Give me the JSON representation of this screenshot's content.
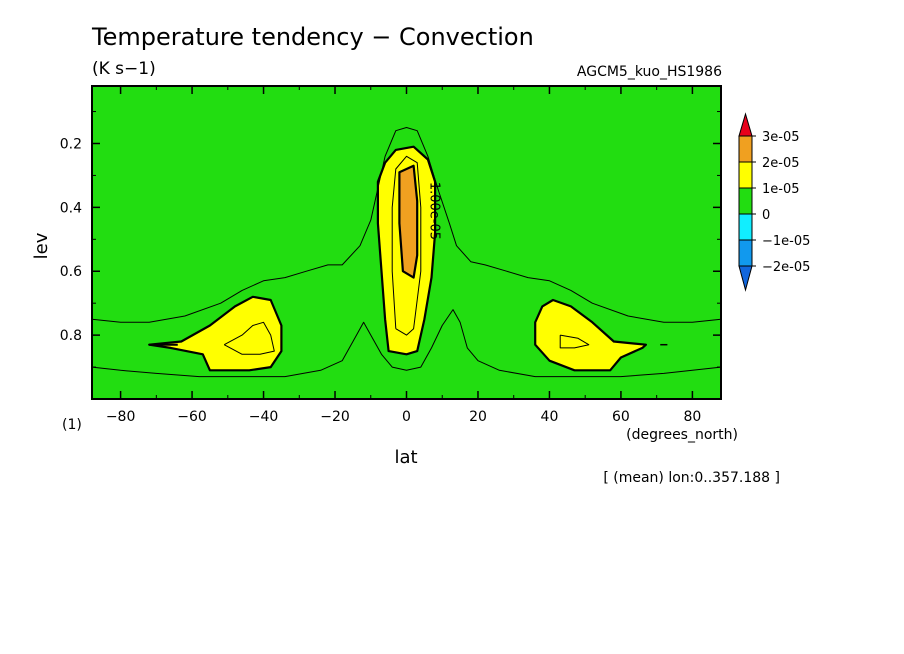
{
  "chart_data": {
    "type": "contour",
    "title": "Temperature tendency − Convection",
    "units": "(K s−1)",
    "model": "AGCM5_kuo_HS1986",
    "xlabel": "lat",
    "xunits": "(degrees_north)",
    "ylabel": "lev",
    "yunits": "(1)",
    "note": "[ (mean) lon:0..357.188 ]",
    "xlim": [
      -88,
      88
    ],
    "ylim": [
      1.0,
      0.02
    ],
    "xticks": [
      -80,
      -60,
      -40,
      -20,
      0,
      20,
      40,
      60,
      80
    ],
    "yticks": [
      0.2,
      0.4,
      0.6,
      0.8
    ],
    "contour_label": "1.00e-05",
    "colorbar": {
      "levels": [
        "3e-05",
        "2e-05",
        "1e-05",
        "0",
        "−1e-05",
        "−2e-05"
      ],
      "colors": [
        "#e8001b",
        "#f0a020",
        "#ffff00",
        "#22dd11",
        "#11eeff",
        "#1199ee",
        "#1166dd"
      ]
    },
    "regions": [
      {
        "name": "1e-05 to 2e-05 (center)",
        "level": 1e-05,
        "points": [
          [
            -5,
            0.85
          ],
          [
            -6,
            0.75
          ],
          [
            -7,
            0.6
          ],
          [
            -8,
            0.45
          ],
          [
            -8,
            0.32
          ],
          [
            -6,
            0.26
          ],
          [
            -3,
            0.22
          ],
          [
            2,
            0.21
          ],
          [
            6,
            0.25
          ],
          [
            8,
            0.32
          ],
          [
            8,
            0.48
          ],
          [
            7,
            0.62
          ],
          [
            5,
            0.75
          ],
          [
            3,
            0.85
          ],
          [
            0,
            0.86
          ]
        ]
      },
      {
        "name": "2e-05 to 3e-05 (center)",
        "level": 2e-05,
        "points": [
          [
            -2,
            0.29
          ],
          [
            2,
            0.27
          ],
          [
            3,
            0.38
          ],
          [
            3,
            0.55
          ],
          [
            2,
            0.62
          ],
          [
            -1,
            0.6
          ],
          [
            -2,
            0.45
          ]
        ]
      },
      {
        "name": "1e-05 to 2e-05 (south)",
        "level": 1e-05,
        "points": [
          [
            -72,
            0.83
          ],
          [
            -63,
            0.82
          ],
          [
            -55,
            0.77
          ],
          [
            -48,
            0.71
          ],
          [
            -43,
            0.68
          ],
          [
            -38,
            0.69
          ],
          [
            -35,
            0.77
          ],
          [
            -35,
            0.85
          ],
          [
            -38,
            0.9
          ],
          [
            -44,
            0.91
          ],
          [
            -55,
            0.91
          ],
          [
            -57,
            0.86
          ],
          [
            -66,
            0.84
          ]
        ]
      },
      {
        "name": "1e-05 to 2e-05 (north)",
        "level": 1e-05,
        "points": [
          [
            67,
            0.83
          ],
          [
            58,
            0.82
          ],
          [
            52,
            0.76
          ],
          [
            46,
            0.71
          ],
          [
            41,
            0.69
          ],
          [
            38,
            0.71
          ],
          [
            36,
            0.76
          ],
          [
            36,
            0.83
          ],
          [
            40,
            0.88
          ],
          [
            47,
            0.91
          ],
          [
            57,
            0.91
          ],
          [
            60,
            0.87
          ],
          [
            66,
            0.84
          ]
        ]
      }
    ],
    "lines": [
      {
        "name": "outer contour (upper)",
        "points": [
          [
            -88,
            0.75
          ],
          [
            -80,
            0.76
          ],
          [
            -72,
            0.76
          ],
          [
            -62,
            0.74
          ],
          [
            -52,
            0.7
          ],
          [
            -46,
            0.66
          ],
          [
            -40,
            0.63
          ],
          [
            -34,
            0.62
          ],
          [
            -28,
            0.6
          ],
          [
            -22,
            0.58
          ],
          [
            -18,
            0.58
          ],
          [
            -13,
            0.52
          ],
          [
            -10,
            0.44
          ],
          [
            -8,
            0.34
          ],
          [
            -6,
            0.24
          ],
          [
            -3,
            0.16
          ],
          [
            0,
            0.15
          ],
          [
            3,
            0.16
          ],
          [
            6,
            0.24
          ],
          [
            9,
            0.35
          ],
          [
            12,
            0.45
          ],
          [
            14,
            0.52
          ],
          [
            18,
            0.57
          ],
          [
            22,
            0.58
          ],
          [
            28,
            0.6
          ],
          [
            34,
            0.62
          ],
          [
            40,
            0.63
          ],
          [
            46,
            0.66
          ],
          [
            52,
            0.7
          ],
          [
            62,
            0.74
          ],
          [
            72,
            0.76
          ],
          [
            80,
            0.76
          ],
          [
            88,
            0.75
          ]
        ]
      },
      {
        "name": "outer contour (lower)",
        "points": [
          [
            -88,
            0.9
          ],
          [
            -80,
            0.91
          ],
          [
            -70,
            0.92
          ],
          [
            -58,
            0.93
          ],
          [
            -44,
            0.93
          ],
          [
            -34,
            0.93
          ],
          [
            -24,
            0.91
          ],
          [
            -18,
            0.88
          ],
          [
            -14,
            0.8
          ],
          [
            -12,
            0.76
          ],
          [
            -10,
            0.8
          ],
          [
            -7,
            0.86
          ],
          [
            -4,
            0.9
          ],
          [
            0,
            0.91
          ],
          [
            4,
            0.9
          ],
          [
            7,
            0.84
          ],
          [
            10,
            0.77
          ],
          [
            13,
            0.72
          ],
          [
            15,
            0.76
          ],
          [
            17,
            0.84
          ],
          [
            20,
            0.88
          ],
          [
            26,
            0.91
          ],
          [
            36,
            0.93
          ],
          [
            48,
            0.93
          ],
          [
            60,
            0.93
          ],
          [
            72,
            0.92
          ],
          [
            80,
            0.91
          ],
          [
            88,
            0.9
          ]
        ]
      },
      {
        "name": "inner contour (center)",
        "points": [
          [
            -3,
            0.78
          ],
          [
            -4,
            0.6
          ],
          [
            -4,
            0.4
          ],
          [
            -3,
            0.28
          ],
          [
            0,
            0.24
          ],
          [
            3,
            0.26
          ],
          [
            4,
            0.4
          ],
          [
            4,
            0.6
          ],
          [
            2,
            0.78
          ],
          [
            0,
            0.8
          ],
          [
            -3,
            0.78
          ]
        ]
      },
      {
        "name": "inner contour (south)",
        "points": [
          [
            -51,
            0.83
          ],
          [
            -46,
            0.8
          ],
          [
            -43,
            0.77
          ],
          [
            -40,
            0.76
          ],
          [
            -38,
            0.8
          ],
          [
            -37,
            0.85
          ],
          [
            -41,
            0.86
          ],
          [
            -46,
            0.86
          ],
          [
            -51,
            0.83
          ]
        ]
      },
      {
        "name": "inner contour (north)",
        "points": [
          [
            43,
            0.8
          ],
          [
            48,
            0.81
          ],
          [
            51,
            0.83
          ],
          [
            47,
            0.84
          ],
          [
            43,
            0.84
          ],
          [
            43,
            0.8
          ]
        ]
      }
    ],
    "grid": false,
    "legend": "colorbar right"
  }
}
